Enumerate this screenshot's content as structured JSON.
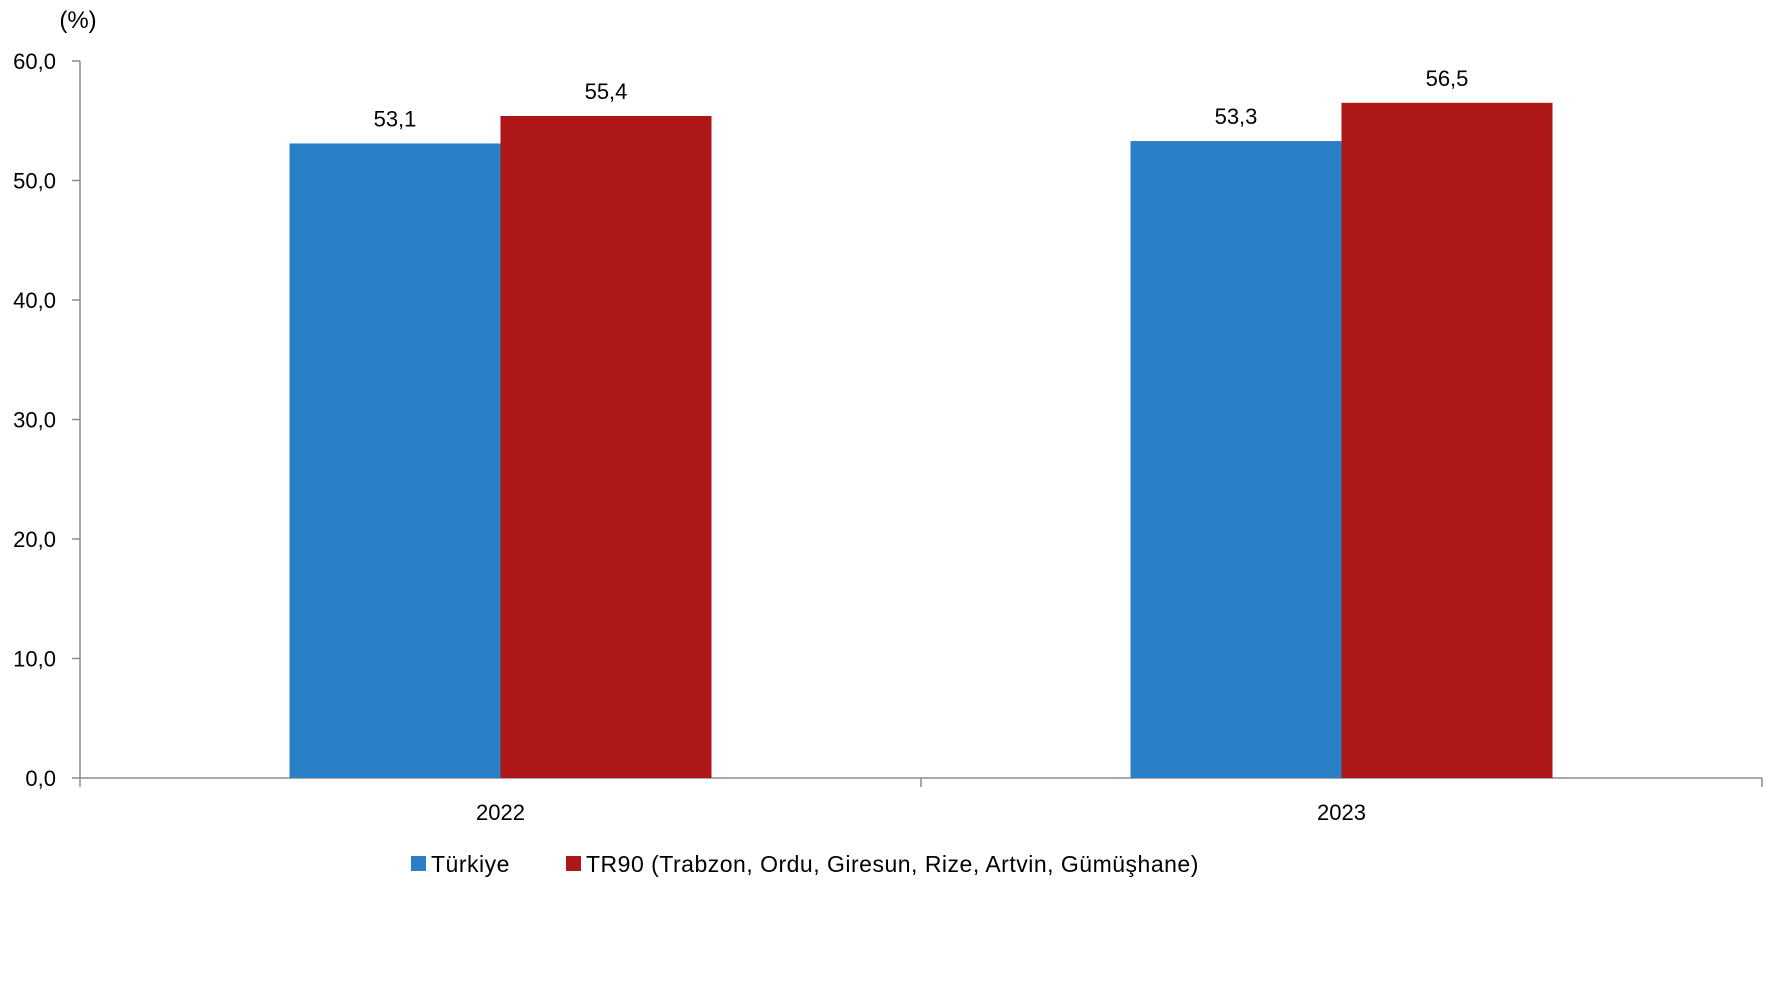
{
  "chart_data": {
    "type": "bar",
    "title": "",
    "unit_label": "(%)",
    "xlabel": "",
    "ylabel": "",
    "ylim": [
      0,
      60
    ],
    "yticks": [
      "0,0",
      "10,0",
      "20,0",
      "30,0",
      "40,0",
      "50,0",
      "60,0"
    ],
    "categories": [
      "2022",
      "2023"
    ],
    "series": [
      {
        "name": "Türkiye",
        "color": "#2980C7",
        "values": [
          53.1,
          53.3
        ],
        "labels": [
          "53,1",
          "53,3"
        ]
      },
      {
        "name": "TR90 (Trabzon, Ordu, Giresun, Rize, Artvin, Gümüşhane)",
        "color": "#AD1717",
        "values": [
          55.4,
          56.5
        ],
        "labels": [
          "55,4",
          "56,5"
        ]
      }
    ],
    "grid": false,
    "legend_position": "bottom"
  }
}
